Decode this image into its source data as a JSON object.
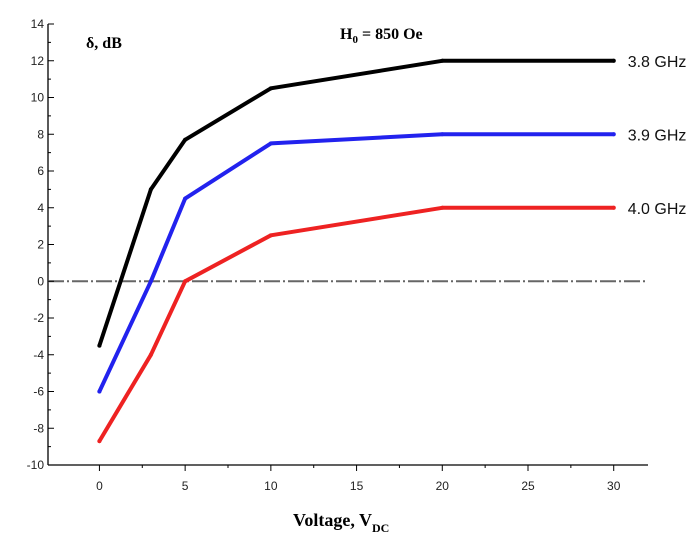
{
  "chart_data": {
    "type": "line",
    "x": [
      0,
      3,
      5,
      10,
      20,
      30
    ],
    "xlim": [
      -3,
      32
    ],
    "ylim": [
      -10,
      14
    ],
    "xticks": [
      0,
      5,
      10,
      15,
      20,
      25,
      30
    ],
    "yticks": [
      -10,
      -8,
      -6,
      -4,
      -2,
      0,
      2,
      4,
      6,
      8,
      10,
      12,
      14
    ],
    "xlabel_main": "Voltage, V",
    "xlabel_sub": "DC",
    "ylabel": "δ, dB",
    "annotation_main": "H",
    "annotation_sub": "0",
    "annotation_rest": " = 850 Oe",
    "reference_line_y": 0,
    "series": [
      {
        "name": "3.8 GHz",
        "color": "#000000",
        "values": [
          -3.5,
          5.0,
          7.7,
          10.5,
          12.0,
          12.0
        ]
      },
      {
        "name": "3.9 GHz",
        "color": "#2222ee",
        "values": [
          -6.0,
          0.0,
          4.5,
          7.5,
          8.0,
          8.0
        ]
      },
      {
        "name": "4.0 GHz",
        "color": "#ee2222",
        "values": [
          -8.7,
          -4.0,
          0.0,
          2.5,
          4.0,
          4.0
        ]
      }
    ],
    "grid": false,
    "legend": "right-of-lines"
  }
}
